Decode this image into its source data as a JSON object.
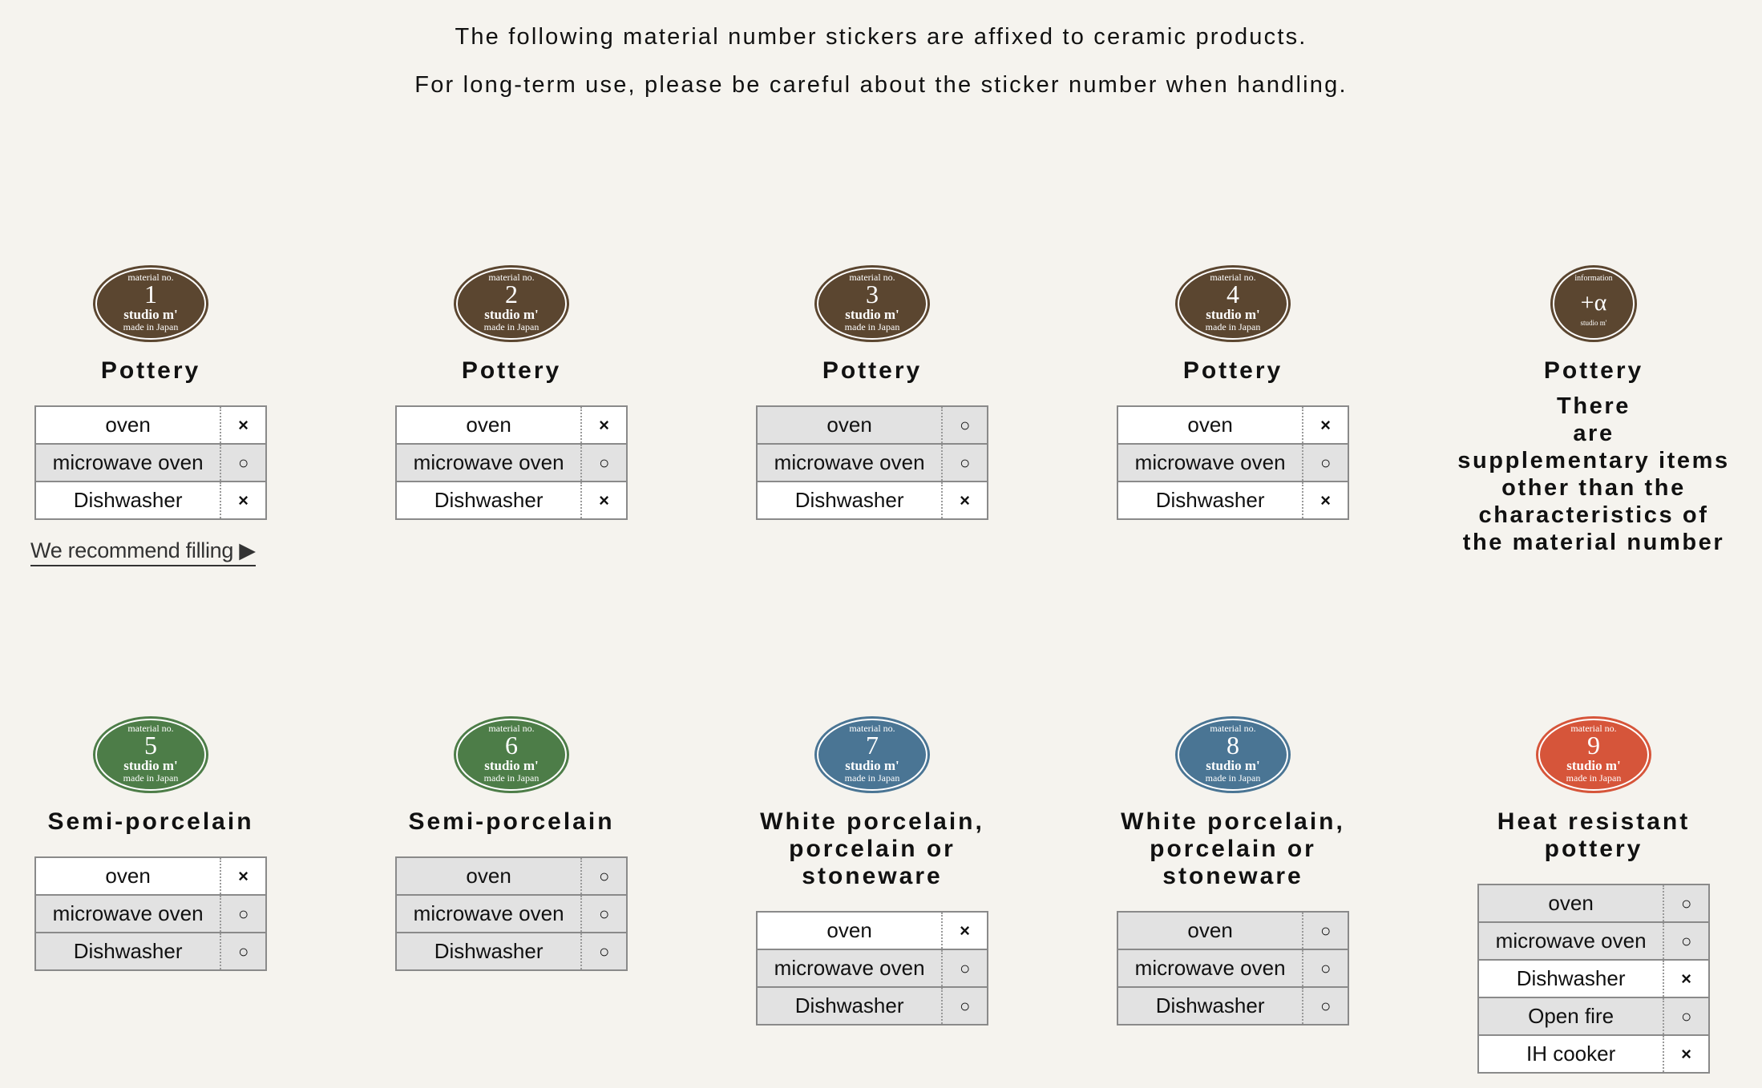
{
  "intro": {
    "line1": "The following material number stickers are affixed to ceramic products.",
    "line2": "For long-term use, please be careful about the sticker number when handling."
  },
  "symbols": {
    "ok": "○",
    "ng": "×"
  },
  "colors": {
    "brown": "#5b4630",
    "green": "#4d7d48",
    "blue": "#4a7594",
    "red": "#d6553a",
    "ok_row": "#e2e2e2",
    "ng_row": "#ffffff"
  },
  "recommend_link": "We recommend filling ▶",
  "cards": [
    {
      "number": "1",
      "sticker_top": "material no.",
      "sticker_brand": "studio m'",
      "sticker_bottom": "made in Japan",
      "color": "#5b4630",
      "title": [
        "Pottery"
      ],
      "rows": [
        {
          "label": "oven",
          "mark": "ng"
        },
        {
          "label": "microwave oven",
          "mark": "ok"
        },
        {
          "label": "Dishwasher",
          "mark": "ng"
        }
      ]
    },
    {
      "number": "2",
      "sticker_top": "material no.",
      "sticker_brand": "studio m'",
      "sticker_bottom": "made in Japan",
      "color": "#5b4630",
      "title": [
        "Pottery"
      ],
      "rows": [
        {
          "label": "oven",
          "mark": "ng"
        },
        {
          "label": "microwave oven",
          "mark": "ok"
        },
        {
          "label": "Dishwasher",
          "mark": "ng"
        }
      ]
    },
    {
      "number": "3",
      "sticker_top": "material no.",
      "sticker_brand": "studio m'",
      "sticker_bottom": "made in Japan",
      "color": "#5b4630",
      "title": [
        "Pottery"
      ],
      "rows": [
        {
          "label": "oven",
          "mark": "ok"
        },
        {
          "label": "microwave oven",
          "mark": "ok"
        },
        {
          "label": "Dishwasher",
          "mark": "ng"
        }
      ]
    },
    {
      "number": "4",
      "sticker_top": "material no.",
      "sticker_brand": "studio m'",
      "sticker_bottom": "made in Japan",
      "color": "#5b4630",
      "title": [
        "Pottery"
      ],
      "rows": [
        {
          "label": "oven",
          "mark": "ng"
        },
        {
          "label": "microwave oven",
          "mark": "ok"
        },
        {
          "label": "Dishwasher",
          "mark": "ng"
        }
      ]
    },
    {
      "number": "+α",
      "sticker_top": "information",
      "sticker_brand": "",
      "sticker_bottom": "studio m'",
      "color": "#5b4630",
      "title": [
        "Pottery"
      ],
      "description": [
        "There",
        "are",
        "supplementary items",
        "other than the",
        "characteristics of",
        "the material number"
      ],
      "rows": []
    },
    {
      "number": "5",
      "sticker_top": "material no.",
      "sticker_brand": "studio m'",
      "sticker_bottom": "made in Japan",
      "color": "#4d7d48",
      "title": [
        "Semi-porcelain"
      ],
      "rows": [
        {
          "label": "oven",
          "mark": "ng"
        },
        {
          "label": "microwave oven",
          "mark": "ok"
        },
        {
          "label": "Dishwasher",
          "mark": "ok"
        }
      ]
    },
    {
      "number": "6",
      "sticker_top": "material no.",
      "sticker_brand": "studio m'",
      "sticker_bottom": "made in Japan",
      "color": "#4d7d48",
      "title": [
        "Semi-porcelain"
      ],
      "rows": [
        {
          "label": "oven",
          "mark": "ok"
        },
        {
          "label": "microwave oven",
          "mark": "ok"
        },
        {
          "label": "Dishwasher",
          "mark": "ok"
        }
      ]
    },
    {
      "number": "7",
      "sticker_top": "material no.",
      "sticker_brand": "studio m'",
      "sticker_bottom": "made in Japan",
      "color": "#4a7594",
      "title": [
        "White porcelain,",
        "porcelain or",
        "stoneware"
      ],
      "rows": [
        {
          "label": "oven",
          "mark": "ng"
        },
        {
          "label": "microwave oven",
          "mark": "ok"
        },
        {
          "label": "Dishwasher",
          "mark": "ok"
        }
      ]
    },
    {
      "number": "8",
      "sticker_top": "material no.",
      "sticker_brand": "studio m'",
      "sticker_bottom": "made in Japan",
      "color": "#4a7594",
      "title": [
        "White porcelain,",
        "porcelain or",
        "stoneware"
      ],
      "rows": [
        {
          "label": "oven",
          "mark": "ok"
        },
        {
          "label": "microwave oven",
          "mark": "ok"
        },
        {
          "label": "Dishwasher",
          "mark": "ok"
        }
      ]
    },
    {
      "number": "9",
      "sticker_top": "material no.",
      "sticker_brand": "studio m'",
      "sticker_bottom": "made in Japan",
      "color": "#d6553a",
      "title": [
        "Heat resistant",
        "pottery"
      ],
      "rows": [
        {
          "label": "oven",
          "mark": "ok"
        },
        {
          "label": "microwave oven",
          "mark": "ok"
        },
        {
          "label": "Dishwasher",
          "mark": "ng"
        },
        {
          "label": "Open fire",
          "mark": "ok"
        },
        {
          "label": "IH cooker",
          "mark": "ng"
        }
      ]
    }
  ]
}
